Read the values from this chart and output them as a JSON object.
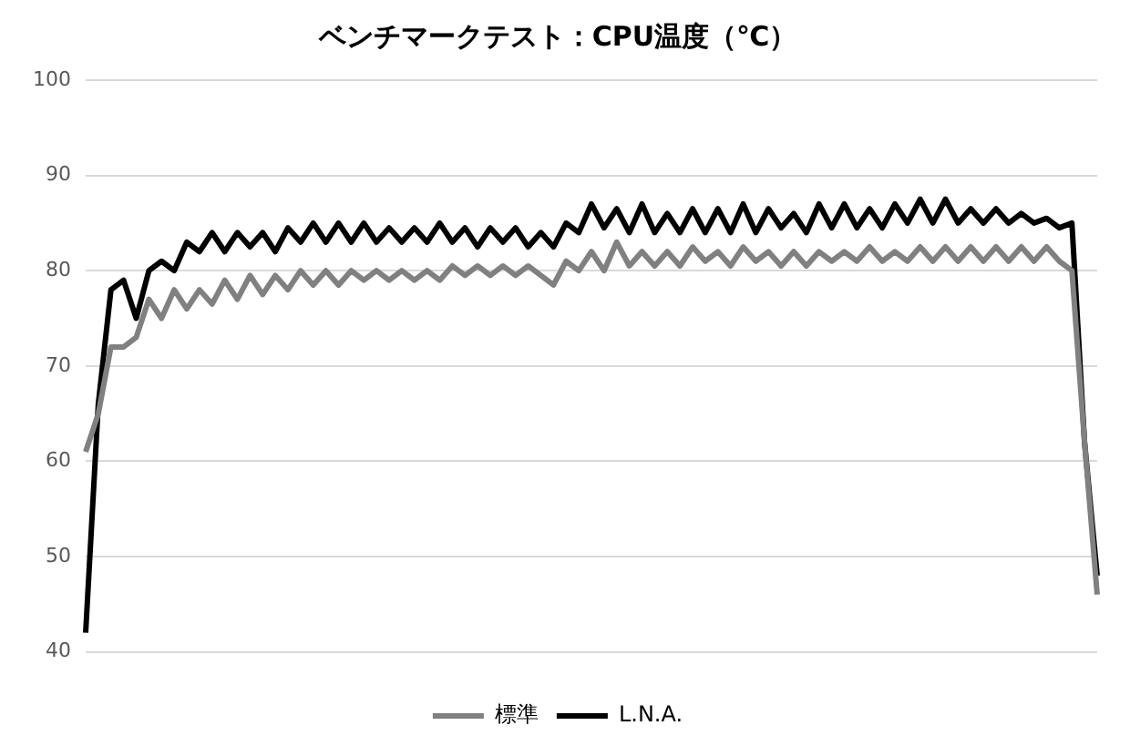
{
  "chart_data": {
    "type": "line",
    "title": "ベンチマークテスト：CPU温度（℃）",
    "categories": [
      null,
      null,
      null,
      null,
      null,
      null,
      null,
      null,
      null,
      null,
      null,
      null,
      null,
      null,
      null,
      null,
      null,
      null,
      null,
      null,
      null,
      null,
      null,
      null,
      null,
      null,
      null,
      null,
      null,
      null,
      null,
      null,
      null,
      null,
      null,
      null,
      null,
      null,
      null,
      null,
      null,
      null,
      null,
      null,
      null,
      null,
      null,
      null,
      null,
      null,
      null,
      null,
      null,
      null,
      null,
      null,
      null,
      null,
      null,
      null,
      null,
      null,
      null,
      null,
      null,
      null,
      null,
      null,
      null,
      null,
      null,
      null,
      null,
      null,
      null,
      null,
      null,
      null,
      null,
      null,
      null
    ],
    "series": [
      {
        "name": "標準",
        "color": "#808080",
        "values": [
          61,
          65,
          72,
          72,
          73,
          77,
          75,
          78,
          76,
          78,
          76.5,
          79,
          77,
          79.5,
          77.5,
          79.5,
          78,
          80,
          78.5,
          80,
          78.5,
          80,
          79,
          80,
          79,
          80,
          79,
          80,
          79,
          80.5,
          79.5,
          80.5,
          79.5,
          80.5,
          79.5,
          80.5,
          79.5,
          78.5,
          81,
          80,
          82,
          80,
          83,
          80.5,
          82,
          80.5,
          82,
          80.5,
          82.5,
          81,
          82,
          80.5,
          82.5,
          81,
          82,
          80.5,
          82,
          80.5,
          82,
          81,
          82,
          81,
          82.5,
          81,
          82,
          81,
          82.5,
          81,
          82.5,
          81,
          82.5,
          81,
          82.5,
          81,
          82.5,
          81,
          82.5,
          81,
          80,
          62,
          46
        ]
      },
      {
        "name": "L.N.A.",
        "color": "#000000",
        "values": [
          42,
          66,
          78,
          79,
          75,
          80,
          81,
          80,
          83,
          82,
          84,
          82,
          84,
          82.5,
          84,
          82,
          84.5,
          83,
          85,
          83,
          85,
          83,
          85,
          83,
          84.5,
          83,
          84.5,
          83,
          85,
          83,
          84.5,
          82.5,
          84.5,
          83,
          84.5,
          82.5,
          84,
          82.5,
          85,
          84,
          87,
          84.5,
          86.5,
          84,
          87,
          84,
          86,
          84,
          86.5,
          84,
          86.5,
          84,
          87,
          84,
          86.5,
          84.5,
          86,
          84,
          87,
          84.5,
          87,
          84.5,
          86.5,
          84.5,
          87,
          85,
          87.5,
          85,
          87.5,
          85,
          86.5,
          85,
          86.5,
          85,
          86,
          85,
          85.5,
          84.5,
          85,
          62,
          48
        ]
      }
    ],
    "ylim": [
      40,
      100
    ],
    "yticks": [
      40,
      50,
      60,
      70,
      80,
      90,
      100
    ],
    "grid": "y",
    "legend": "bottom",
    "marker": "none",
    "line_style": "solid"
  }
}
